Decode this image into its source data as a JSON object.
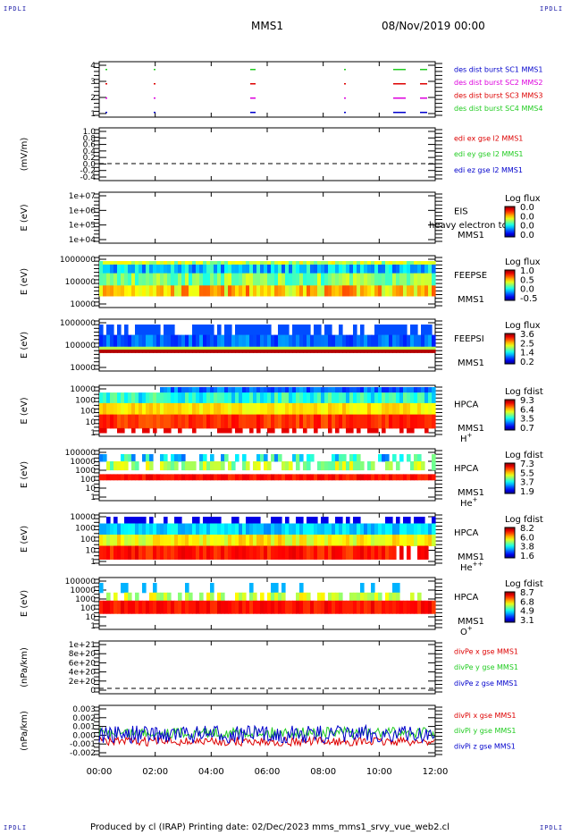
{
  "corner_label": "IPDLI",
  "header": {
    "spacecraft": "MMS1",
    "date": "08/Nov/2019 00:00"
  },
  "footer": {
    "text": "Produced by cl (IRAP)   Printing date: 02/Dec/2023   mms_mms1_srvy_vue_web2.cl"
  },
  "x_ticks": [
    "00:00",
    "02:00",
    "04:00",
    "06:00",
    "08:00",
    "10:00",
    "12:00"
  ],
  "colors": {
    "red": "#dd0000",
    "magenta": "#dd00dd",
    "green": "#22cc22",
    "blue": "#0000cc"
  },
  "panels": [
    {
      "id": "des-burst",
      "ylabel": "",
      "yticks": [
        "4",
        "3",
        "2",
        "1"
      ],
      "legend": [
        {
          "text": "des dist burst SC1 MMS1",
          "color": "#0000cc"
        },
        {
          "text": "des dist burst SC2 MMS2",
          "color": "#dd00dd"
        },
        {
          "text": "des dist burst SC3 MMS3",
          "color": "#dd0000"
        },
        {
          "text": "des dist burst SC4 MMS4",
          "color": "#22cc22"
        }
      ]
    },
    {
      "id": "edi",
      "ylabel": "(mV/m)",
      "yticks": [
        "1.0",
        "0.8",
        "0.6",
        "0.4",
        "0.2",
        "0.0",
        "-0.2",
        "-0.4"
      ],
      "legend": [
        {
          "text": "edi ex gse l2 MMS1",
          "color": "#dd0000"
        },
        {
          "text": "edi ey gse l2 MMS1",
          "color": "#22cc22"
        },
        {
          "text": "edi ez gse l2 MMS1",
          "color": "#0000cc"
        }
      ]
    },
    {
      "id": "eis",
      "ylabel": "E (eV)",
      "yticks": [
        "1e+07",
        "1e+06",
        "1e+05",
        "1e+04"
      ],
      "labels": [
        "EIS",
        "MMS1"
      ],
      "overlay": "heavy electron tof",
      "colorbar": {
        "title": "Log flux",
        "ticks": [
          "0.0",
          "0.0",
          "0.0",
          "0.0"
        ]
      }
    },
    {
      "id": "feepse",
      "ylabel": "E (eV)",
      "yticks": [
        "1000000",
        "100000",
        "10000"
      ],
      "labels": [
        "FEEPSE",
        "MMS1"
      ],
      "colorbar": {
        "title": "Log flux",
        "ticks": [
          "1.0",
          "0.5",
          "0.0",
          "-0.5"
        ]
      }
    },
    {
      "id": "feepsi",
      "ylabel": "E (eV)",
      "yticks": [
        "1000000",
        "100000",
        "10000"
      ],
      "labels": [
        "FEEPSI",
        "MMS1"
      ],
      "colorbar": {
        "title": "Log flux",
        "ticks": [
          "3.6",
          "2.5",
          "1.4",
          "0.2"
        ]
      }
    },
    {
      "id": "hpca-h",
      "ylabel": "E (eV)",
      "yticks": [
        "10000",
        "1000",
        "100",
        "10",
        "1"
      ],
      "labels": [
        "HPCA",
        "MMS1"
      ],
      "species": "H",
      "charge": "+",
      "colorbar": {
        "title": "Log fdist",
        "ticks": [
          "9.3",
          "6.4",
          "3.5",
          "0.7"
        ]
      }
    },
    {
      "id": "hpca-he",
      "ylabel": "E (eV)",
      "yticks": [
        "100000",
        "10000",
        "1000",
        "100",
        "10",
        "1"
      ],
      "labels": [
        "HPCA",
        "MMS1"
      ],
      "species": "He",
      "charge": "+",
      "colorbar": {
        "title": "Log fdist",
        "ticks": [
          "7.3",
          "5.5",
          "3.7",
          "1.9"
        ]
      }
    },
    {
      "id": "hpca-hepp",
      "ylabel": "E (eV)",
      "yticks": [
        "10000",
        "1000",
        "100",
        "10",
        "1"
      ],
      "labels": [
        "HPCA",
        "MMS1"
      ],
      "species": "He",
      "charge": "++",
      "colorbar": {
        "title": "Log fdist",
        "ticks": [
          "8.2",
          "6.0",
          "3.8",
          "1.6"
        ]
      }
    },
    {
      "id": "hpca-o",
      "ylabel": "E (eV)",
      "yticks": [
        "100000",
        "10000",
        "1000",
        "100",
        "10",
        "1"
      ],
      "labels": [
        "HPCA",
        "MMS1"
      ],
      "species": "O",
      "charge": "+",
      "colorbar": {
        "title": "Log fdist",
        "ticks": [
          "8.7",
          "6.8",
          "4.9",
          "3.1"
        ]
      }
    },
    {
      "id": "divpe",
      "ylabel": "(nPa/km)",
      "yticks": [
        "1e+21",
        "8e+20",
        "6e+20",
        "4e+20",
        "2e+20",
        "0"
      ],
      "legend": [
        {
          "text": "divPe x gse MMS1",
          "color": "#dd0000"
        },
        {
          "text": "divPe y gse MMS1",
          "color": "#22cc22"
        },
        {
          "text": "divPe z gse MMS1",
          "color": "#0000cc"
        }
      ]
    },
    {
      "id": "divpi",
      "ylabel": "(nPa/km)",
      "yticks": [
        "0.003",
        "0.002",
        "0.001",
        "0.000",
        "-0.001",
        "-0.002"
      ],
      "legend": [
        {
          "text": "divPi x gse MMS1",
          "color": "#dd0000"
        },
        {
          "text": "divPi y gse MMS1",
          "color": "#22cc22"
        },
        {
          "text": "divPi z gse MMS1",
          "color": "#0000cc"
        }
      ]
    }
  ],
  "chart_data": {
    "type": "heatmap",
    "x_range": [
      "00:00",
      "12:00"
    ],
    "burst_intervals": [
      {
        "sc": "SC1",
        "starts": [
          "00:30",
          "02:00",
          "05:30",
          "08:40",
          "10:50",
          "11:30"
        ]
      },
      {
        "sc": "SC2",
        "starts": [
          "00:30",
          "02:00",
          "05:30",
          "08:40",
          "10:50",
          "11:30"
        ]
      },
      {
        "sc": "SC3",
        "starts": [
          "00:30",
          "02:00",
          "05:30",
          "08:40",
          "10:50",
          "11:30"
        ]
      },
      {
        "sc": "SC4",
        "starts": [
          "00:30",
          "02:00",
          "05:30",
          "08:40",
          "10:50",
          "11:30"
        ]
      }
    ],
    "edi_level": 0.0,
    "divpe_level": 0,
    "divpi_range": [
      -0.002,
      0.003
    ]
  }
}
